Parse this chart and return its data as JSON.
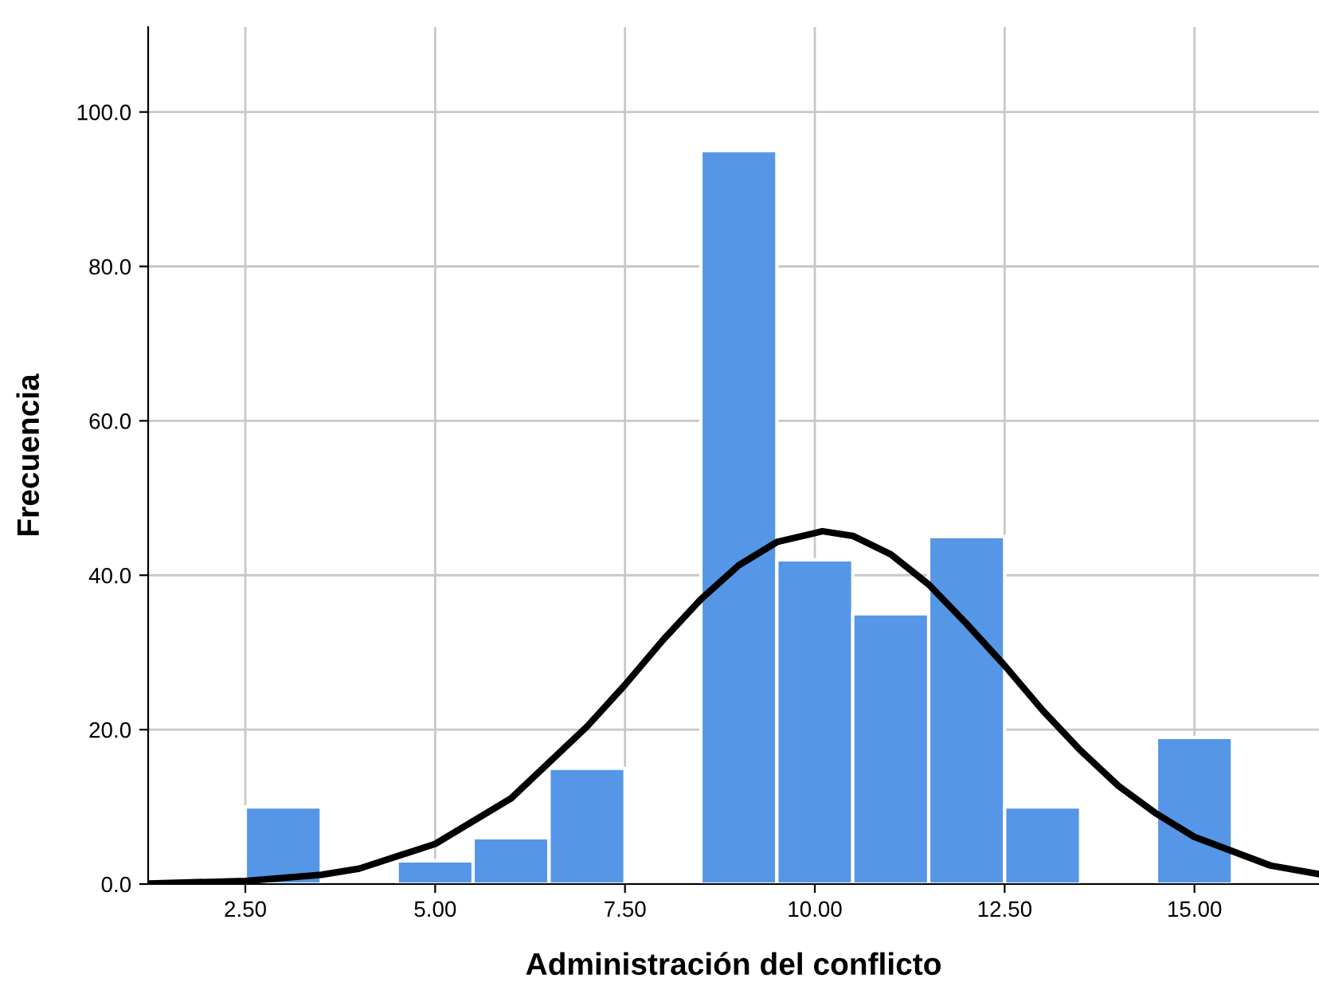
{
  "chart_data": {
    "type": "histogram",
    "xlabel": "Administración del conflicto",
    "ylabel": "Frecuencia",
    "bins": [
      2.5,
      3.5,
      4.5,
      5.5,
      6.5,
      7.5,
      8.5,
      9.5,
      10.5,
      11.5,
      12.5,
      13.5,
      14.5,
      15.5
    ],
    "values": [
      10,
      0,
      3,
      6,
      15,
      0,
      95,
      42,
      35,
      45,
      10,
      0,
      19
    ],
    "color": "#5596e6",
    "series": [
      {
        "type": "line",
        "color": "#000000",
        "x": [
          1.22,
          2.5,
          3.5,
          4,
          5,
          6,
          7,
          7.5,
          8,
          8.5,
          9,
          9.5,
          10.1,
          10.5,
          11,
          11.5,
          12,
          12.5,
          13,
          13.5,
          14,
          14.5,
          15,
          16,
          16.64
        ],
        "values": [
          0.06,
          0.4,
          1.2,
          2.0,
          5.2,
          11.1,
          20.4,
          25.8,
          31.6,
          36.9,
          41.3,
          44.3,
          45.7,
          45.1,
          42.7,
          38.8,
          33.7,
          28.3,
          22.5,
          17.3,
          12.7,
          9.1,
          6.1,
          2.4,
          1.3
        ]
      }
    ],
    "xlim": [
      1.22,
      16.64
    ],
    "ylim": [
      0,
      111
    ],
    "xticks": [
      {
        "value": 2.5,
        "label": "2.50"
      },
      {
        "value": 5,
        "label": "5.00"
      },
      {
        "value": 7.5,
        "label": "7.50"
      },
      {
        "value": 10,
        "label": "10.00"
      },
      {
        "value": 12.5,
        "label": "12.50"
      },
      {
        "value": 15,
        "label": "15.00"
      }
    ],
    "yticks": [
      {
        "value": 0,
        "label": "0.0"
      },
      {
        "value": 20,
        "label": "20.0"
      },
      {
        "value": 40,
        "label": "40.0"
      },
      {
        "value": 60,
        "label": "60.0"
      },
      {
        "value": 80,
        "label": "80.0"
      },
      {
        "value": 100,
        "label": "100.0"
      }
    ],
    "grid": true
  }
}
